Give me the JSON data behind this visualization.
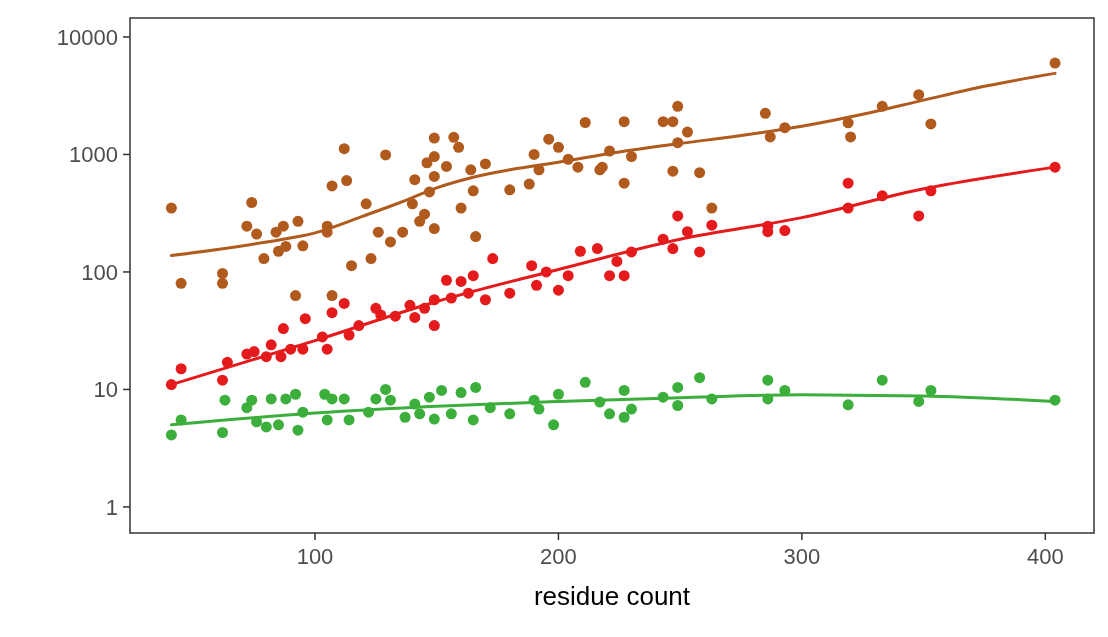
{
  "chart_data": {
    "type": "scatter",
    "xlabel": "residue count",
    "xlim": [
      24,
      420
    ],
    "xticks": [
      100,
      200,
      300,
      400
    ],
    "ylim": [
      0.6,
      14500
    ],
    "yticks": [
      1,
      10,
      100,
      1000,
      10000
    ],
    "log": "y",
    "marker": "circle",
    "series": [
      {
        "color": "#b05a1e",
        "x": [
          41,
          45,
          62,
          62,
          74,
          72,
          76,
          79,
          84,
          85,
          87,
          88,
          92,
          93,
          95,
          105,
          105,
          107,
          107,
          112,
          113,
          115,
          121,
          123,
          126,
          129,
          131,
          136,
          140,
          141,
          143,
          145,
          146,
          147,
          149,
          149,
          149,
          149,
          154,
          157,
          159,
          160,
          164,
          165,
          166,
          170,
          180,
          188,
          190,
          192,
          196,
          200,
          204,
          208,
          211,
          217,
          227,
          227,
          221,
          218,
          230,
          243,
          247,
          249,
          253,
          249,
          247,
          258,
          263,
          285,
          287,
          293,
          319,
          320,
          333,
          348,
          353,
          404
        ],
        "values": [
          350,
          80,
          97,
          80,
          390,
          245,
          210,
          130,
          218,
          150,
          245,
          165,
          63,
          270,
          167,
          245,
          218,
          540,
          63,
          1120,
          600,
          113,
          380,
          130,
          218,
          990,
          180,
          218,
          380,
          610,
          270,
          310,
          850,
          480,
          960,
          650,
          234,
          1380,
          790,
          1400,
          1150,
          350,
          740,
          490,
          200,
          830,
          500,
          560,
          1000,
          740,
          1350,
          1150,
          910,
          780,
          1870,
          740,
          1900,
          570,
          1070,
          780,
          960,
          1900,
          1900,
          2570,
          1550,
          1260,
          720,
          700,
          350,
          2240,
          1410,
          1690,
          1860,
          1410,
          2570,
          3230,
          1820,
          6000
        ]
      },
      {
        "color": "#e41a1c",
        "x": [
          41,
          45,
          62,
          64,
          72,
          75,
          80,
          82,
          86,
          87,
          90,
          95,
          96,
          103,
          105,
          107,
          112,
          114,
          118,
          125,
          127,
          133,
          139,
          141,
          145,
          149,
          149,
          154,
          156,
          160,
          163,
          165,
          170,
          173,
          180,
          189,
          191,
          195,
          200,
          204,
          209,
          216,
          221,
          227,
          224,
          230,
          243,
          247,
          249,
          253,
          258,
          263,
          286,
          286,
          293,
          319,
          319,
          333,
          348,
          353,
          404
        ],
        "values": [
          11,
          15,
          12,
          17,
          20,
          21,
          19,
          24,
          19,
          33,
          22,
          22,
          40,
          28,
          22,
          45,
          54,
          29,
          35,
          49,
          43,
          42,
          52,
          41,
          49,
          58,
          35,
          85,
          60,
          83,
          66,
          93,
          58,
          130,
          66,
          113,
          77,
          100,
          70,
          93,
          150,
          158,
          93,
          93,
          123,
          148,
          190,
          158,
          300,
          220,
          148,
          250,
          245,
          220,
          225,
          570,
          350,
          445,
          300,
          490,
          780
        ]
      },
      {
        "color": "#3cae3c",
        "x": [
          41,
          45,
          62,
          63,
          72,
          74,
          76,
          80,
          82,
          85,
          88,
          92,
          93,
          95,
          104,
          105,
          107,
          112,
          114,
          122,
          125,
          129,
          131,
          137,
          141,
          143,
          147,
          149,
          152,
          156,
          160,
          165,
          166,
          172,
          180,
          190,
          192,
          198,
          200,
          211,
          217,
          227,
          221,
          227,
          230,
          243,
          249,
          249,
          258,
          263,
          286,
          286,
          293,
          319,
          333,
          348,
          353,
          404
        ],
        "values": [
          4.1,
          5.5,
          4.3,
          8.1,
          7,
          8.1,
          5.3,
          4.8,
          8.3,
          5,
          8.3,
          9.1,
          4.5,
          6.4,
          9.1,
          5.5,
          8.3,
          8.3,
          5.5,
          6.4,
          8.3,
          10,
          8.1,
          5.8,
          7.5,
          6.2,
          8.6,
          5.6,
          9.8,
          6.2,
          9.4,
          5.5,
          10.4,
          7,
          6.2,
          8.1,
          6.8,
          5,
          9.1,
          11.5,
          7.8,
          9.8,
          6.2,
          5.8,
          6.8,
          8.6,
          10.4,
          7.3,
          12.6,
          8.3,
          12,
          8.3,
          9.8,
          7.4,
          12,
          7.9,
          9.8,
          8.1
        ]
      },
      {
        "type": "line",
        "marker": "none",
        "color": "#b05a1e",
        "x": [
          41,
          60,
          80,
          100,
          120,
          135,
          150,
          165,
          180,
          200,
          225,
          250,
          275,
          300,
          325,
          350,
          375,
          404
        ],
        "values": [
          138,
          155,
          180,
          215,
          300,
          390,
          520,
          640,
          740,
          860,
          1050,
          1240,
          1450,
          1740,
          2200,
          2900,
          3800,
          4900
        ]
      },
      {
        "type": "line",
        "marker": "none",
        "color": "#e41a1c",
        "x": [
          41,
          100,
          150,
          200,
          250,
          300,
          350,
          404
        ],
        "values": [
          11,
          26,
          56,
          105,
          190,
          290,
          510,
          780
        ]
      },
      {
        "type": "line",
        "marker": "none",
        "color": "#3cae3c",
        "x": [
          41,
          100,
          150,
          200,
          250,
          300,
          350,
          404
        ],
        "values": [
          5,
          6.3,
          7.2,
          7.9,
          8.5,
          9,
          8.8,
          7.9
        ]
      }
    ]
  }
}
